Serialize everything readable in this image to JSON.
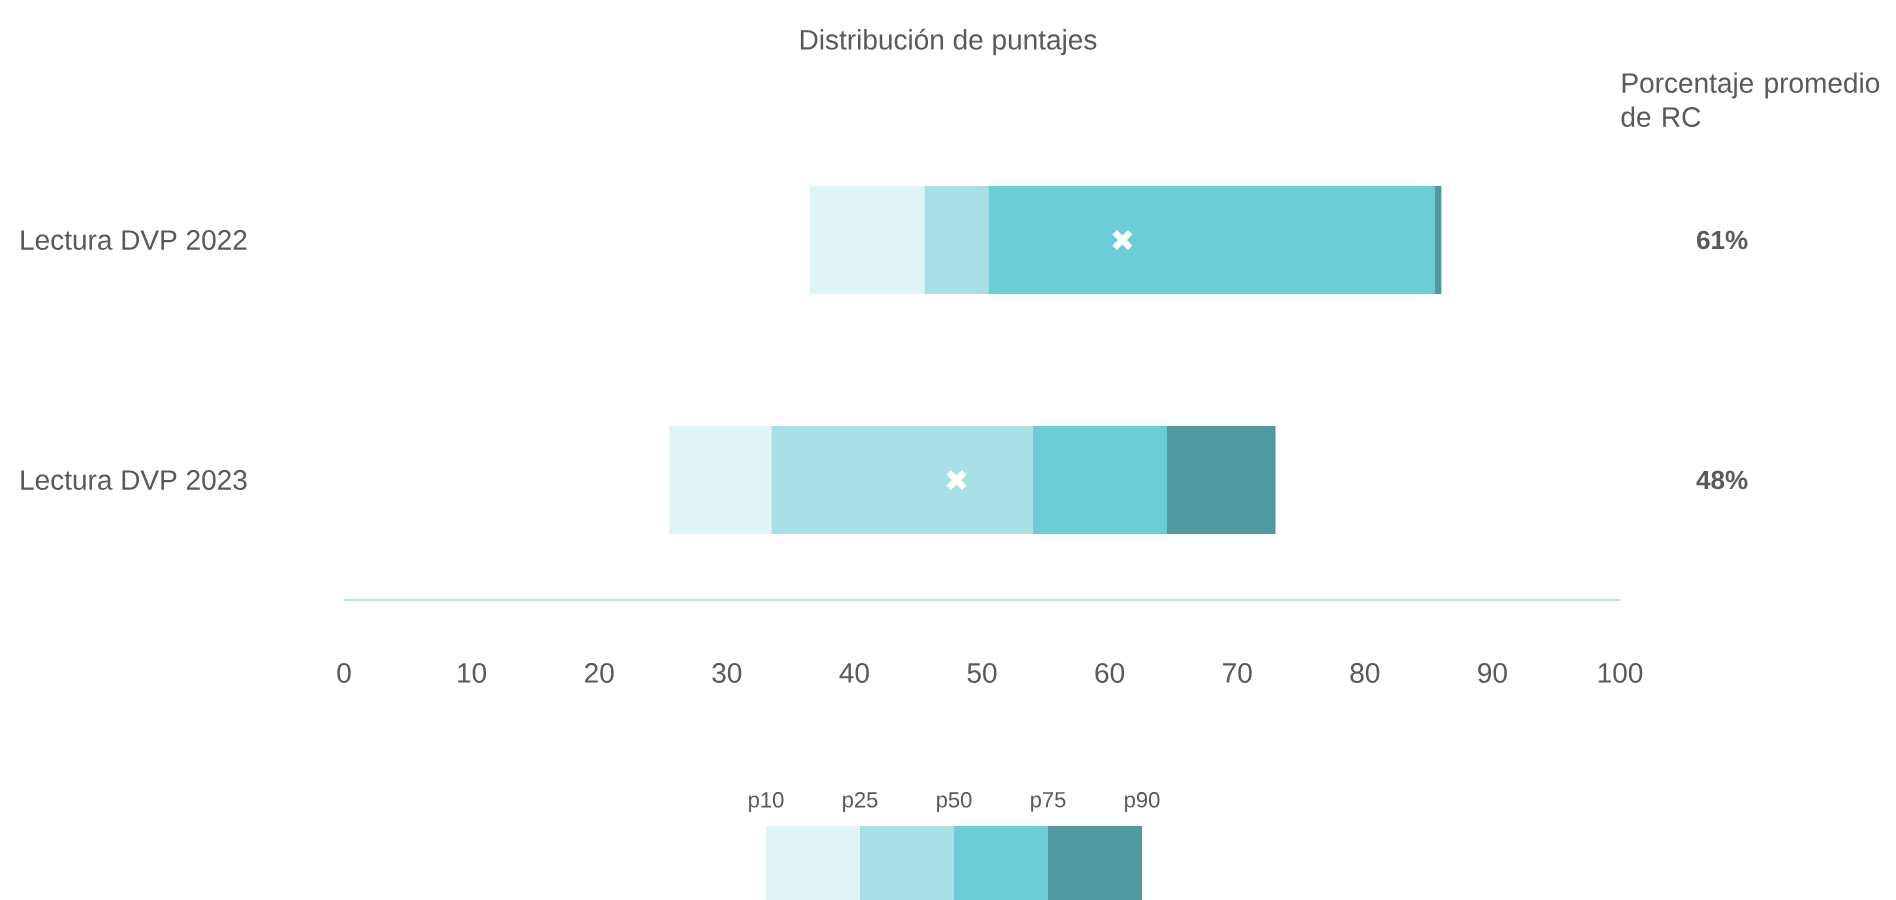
{
  "chart_data": {
    "type": "bar",
    "orientation": "horizontal",
    "title": "Distribución de puntajes",
    "categories": [
      "Lectura DVP 2022",
      "Lectura DVP 2023"
    ],
    "series": [
      {
        "color": "#e0f3f5",
        "base": [
          36.5,
          25.5
        ],
        "values": [
          9,
          8
        ]
      },
      {
        "color": "#a8dfe6",
        "base": [
          45.5,
          33.5
        ],
        "values": [
          5,
          20.5
        ]
      },
      {
        "color": "#6ccdd6",
        "base": [
          50.5,
          54
        ],
        "values": [
          35,
          10.5
        ]
      },
      {
        "color": "#50999f",
        "base": [
          85.5,
          64.5
        ],
        "values": [
          0.5,
          8.5
        ]
      },
      {
        "type": "scatter",
        "color": "#ffffff",
        "marker": "cross",
        "values": [
          61,
          48
        ],
        "value_labels": [
          "61%",
          "48%"
        ]
      }
    ],
    "xlim": [
      0,
      100
    ],
    "xticks": [
      0,
      10,
      20,
      30,
      40,
      50,
      60,
      70,
      80,
      90,
      100
    ],
    "annotations": [
      "Porcentaje promedio de RC",
      "p10",
      "p25",
      "p50",
      "p75",
      "p90"
    ]
  }
}
